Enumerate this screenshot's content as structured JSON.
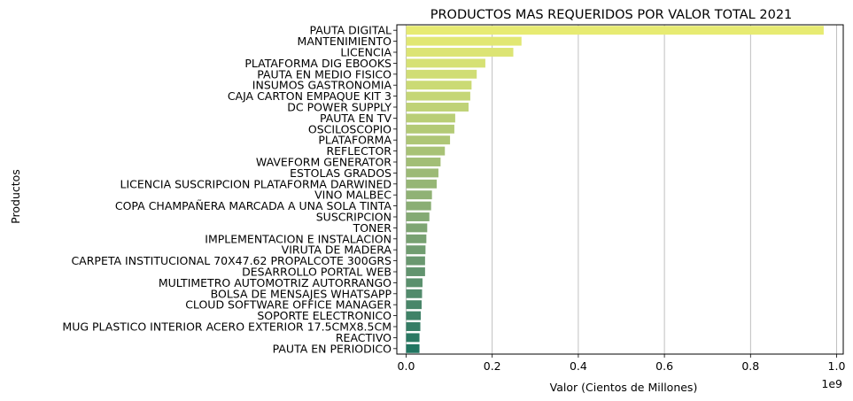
{
  "chart_data": {
    "type": "bar",
    "orientation": "horizontal",
    "title": "PRODUCTOS MAS REQUERIDOS POR VALOR TOTAL 2021",
    "xlabel": "Valor (Cientos de Millones)",
    "ylabel": "Productos",
    "x_offset_label": "1e9",
    "xlim": [
      0,
      1.0
    ],
    "xticks": [
      0.0,
      0.2,
      0.4,
      0.6,
      0.8,
      1.0
    ],
    "xtick_labels": [
      "0.0",
      "0.2",
      "0.4",
      "0.6",
      "0.8",
      "1.0"
    ],
    "grid": "x",
    "categories": [
      "PAUTA DIGITAL",
      "MANTENIMIENTO",
      "LICENCIA",
      "PLATAFORMA DIG EBOOKS",
      "PAUTA EN MEDIO FISICO",
      "INSUMOS GASTRONOMIA",
      "CAJA CARTON EMPAQUE KIT 3",
      "DC POWER SUPPLY",
      "PAUTA EN TV",
      "OSCILOSCOPIO",
      "PLATAFORMA",
      "REFLECTOR",
      "WAVEFORM GENERATOR",
      "ESTOLAS GRADOS",
      "LICENCIA SUSCRIPCION PLATAFORMA DARWINED",
      "VINO MALBEC",
      "COPA CHAMPAÑERA MARCADA A UNA SOLA TINTA",
      "SUSCRIPCION",
      "TONER",
      "IMPLEMENTACION E INSTALACION",
      "VIRUTA DE MADERA",
      "CARPETA INSTITUCIONAL 70X47.62 PROPALCOTE 300GRS",
      "DESARROLLO PORTAL WEB",
      "MULTIMETRO AUTOMOTRIZ AUTORRANGO",
      "BOLSA DE MENSAJES WHATSAPP",
      "CLOUD SOFTWARE OFFICE MANAGER",
      "SOPORTE ELECTRONICO",
      "MUG PLASTICO INTERIOR ACERO EXTERIOR 17.5CMX8.5CM",
      "REACTIVO",
      "PAUTA EN PERIODICO"
    ],
    "values": [
      0.97,
      0.268,
      0.249,
      0.184,
      0.164,
      0.152,
      0.149,
      0.145,
      0.114,
      0.112,
      0.102,
      0.09,
      0.08,
      0.075,
      0.071,
      0.06,
      0.058,
      0.054,
      0.049,
      0.047,
      0.045,
      0.044,
      0.044,
      0.038,
      0.037,
      0.036,
      0.034,
      0.033,
      0.031,
      0.031
    ],
    "colors": [
      "#e7eb72",
      "#e1e773",
      "#dce474",
      "#d6e174",
      "#d0dd75",
      "#cbda75",
      "#c5d676",
      "#bfd276",
      "#b9ce76",
      "#b3ca76",
      "#aec676",
      "#a8c276",
      "#a2be76",
      "#9cba76",
      "#96b675",
      "#90b275",
      "#8aae74",
      "#84aa74",
      "#7ea573",
      "#78a172",
      "#719d71",
      "#6a9870",
      "#62946f",
      "#5a906d",
      "#528b6c",
      "#498669",
      "#3f8267",
      "#357d65",
      "#2b7963",
      "#217561"
    ]
  }
}
